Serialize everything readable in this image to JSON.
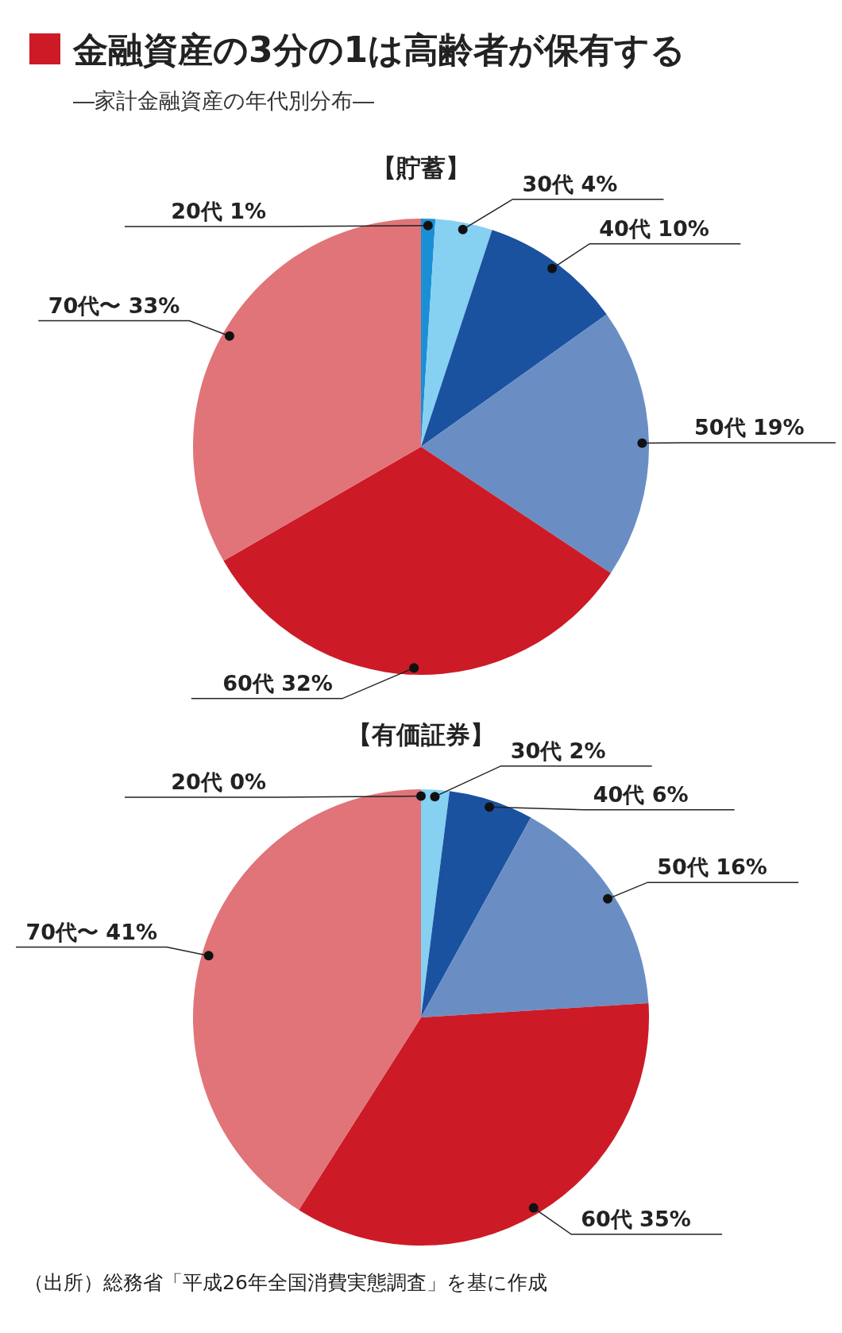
{
  "chart_data": [
    {
      "type": "pie",
      "title": "【貯蓄】",
      "categories": [
        "20代",
        "30代",
        "40代",
        "50代",
        "60代",
        "70代〜"
      ],
      "values": [
        1,
        4,
        10,
        19,
        32,
        33
      ],
      "value_labels": [
        "1%",
        "4%",
        "10%",
        "19%",
        "32%",
        "33%"
      ],
      "colors": [
        "#1a8fd6",
        "#86d0f2",
        "#1a52a0",
        "#6a8ec4",
        "#cc1b26",
        "#e07478"
      ],
      "annotations": [
        "金融資産の3分の1は高齢者が保有する",
        "―家計金融資産の年代別分布―"
      ]
    },
    {
      "type": "pie",
      "title": "【有価証券】",
      "categories": [
        "20代",
        "30代",
        "40代",
        "50代",
        "60代",
        "70代〜"
      ],
      "values": [
        0,
        2,
        6,
        16,
        35,
        41
      ],
      "value_labels": [
        "0%",
        "2%",
        "6%",
        "16%",
        "35%",
        "41%"
      ],
      "colors": [
        "#1a8fd6",
        "#86d0f2",
        "#1a52a0",
        "#6a8ec4",
        "#cc1b26",
        "#e07478"
      ],
      "annotations": [
        "（出所）総務省「平成26年全国消費実態調査」を基に作成"
      ]
    }
  ]
}
